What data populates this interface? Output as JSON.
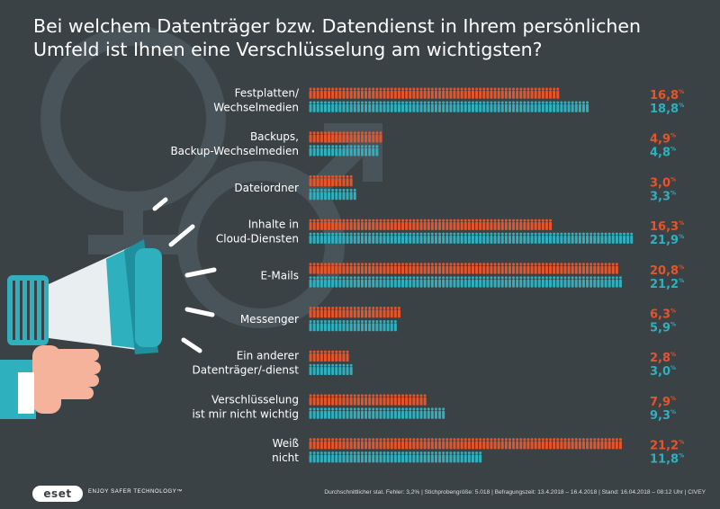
{
  "title": "Bei welchem Datenträger bzw. Datendienst in Ihrem persönlichen Umfeld ist  Ihnen eine Verschlüsselung am wichtigsten?",
  "colors": {
    "background": "#3b4245",
    "female": "#e8542a",
    "male": "#2fb0bf"
  },
  "icons": {
    "background": "gender-symbols-icon",
    "megaphone": "megaphone-icon",
    "hand": "hand-icon",
    "person": "person-icon"
  },
  "chart_data": {
    "type": "bar",
    "orientation": "horizontal",
    "grid": false,
    "legend": "none",
    "xlim": [
      0,
      22
    ],
    "categories": [
      [
        "Festplatten/",
        "Wechselmedien"
      ],
      [
        "Backups,",
        "Backup-Wechselmedien"
      ],
      [
        "Dateiordner"
      ],
      [
        "Inhalte in",
        "Cloud-Diensten"
      ],
      [
        "E-Mails"
      ],
      [
        "Messenger"
      ],
      [
        "Ein anderer",
        "Datenträger/-dienst"
      ],
      [
        "Verschlüsselung",
        "ist mir nicht wichtig"
      ],
      [
        "Weiß",
        "nicht"
      ]
    ],
    "series": [
      {
        "color": "#e8542a",
        "values": [
          16.8,
          4.9,
          3.0,
          16.3,
          20.8,
          6.3,
          2.8,
          7.9,
          21.2
        ],
        "labels": [
          "16,8",
          "4,9",
          "3,0",
          "16,3",
          "20,8",
          "6,3",
          "2,8",
          "7,9",
          "21,2"
        ]
      },
      {
        "color": "#2fb0bf",
        "values": [
          18.8,
          4.8,
          3.3,
          21.9,
          21.2,
          5.9,
          3.0,
          9.3,
          11.8
        ],
        "labels": [
          "18,8",
          "4,8",
          "3,3",
          "21,9",
          "21,2",
          "5,9",
          "3,0",
          "9,3",
          "11,8"
        ]
      }
    ],
    "unit": "%"
  },
  "footer": {
    "logo": "eset",
    "tagline": "ENJOY SAFER TECHNOLOGY™",
    "note": "Durchschnittlicher stat. Fehler: 3,2% | Stichprobengröße: 5.018 | Befragungszeit: 13.4.2018 – 16.4.2018 | Stand: 16.04.2018 – 08:12 Uhr   |  CIVEY"
  }
}
